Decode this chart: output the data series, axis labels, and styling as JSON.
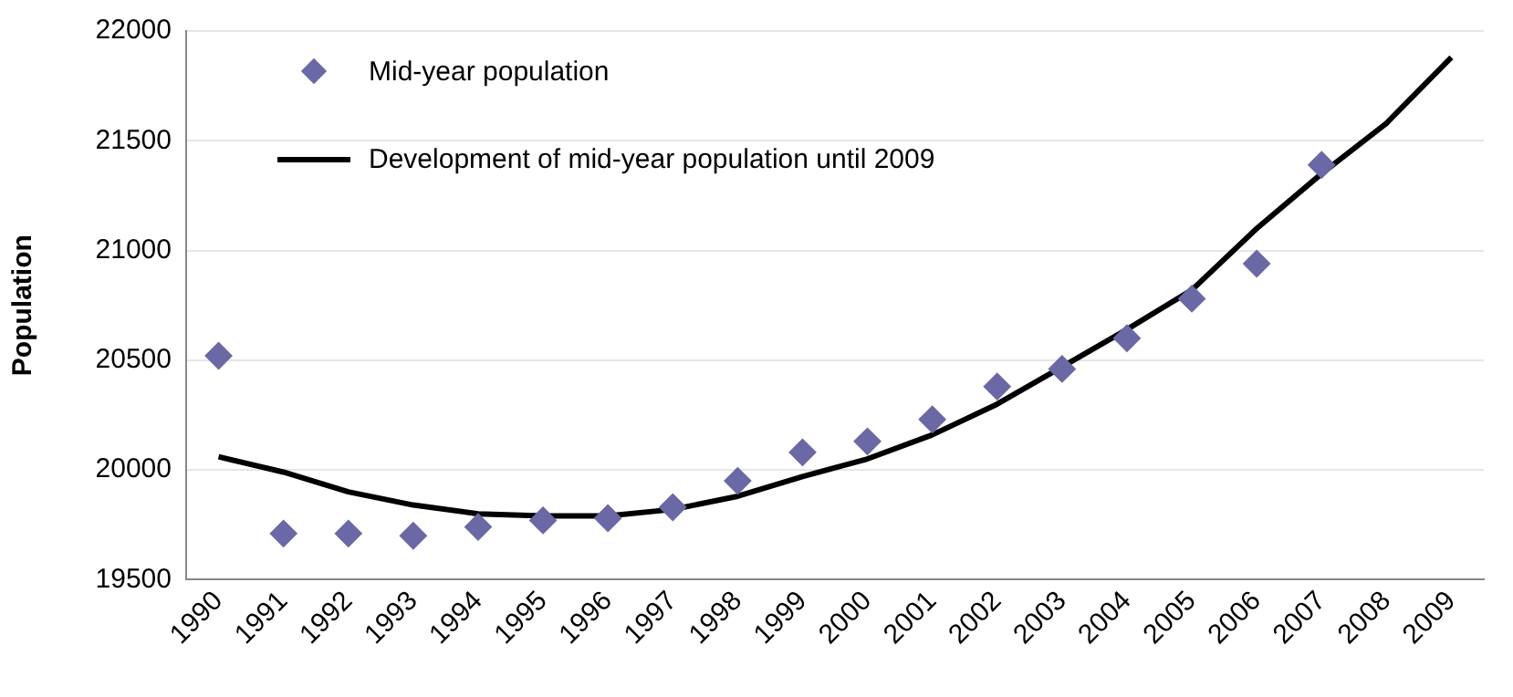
{
  "chart_data": {
    "type": "line",
    "ylabel": "Population",
    "categories": [
      "1990",
      "1991",
      "1992",
      "1993",
      "1994",
      "1995",
      "1996",
      "1997",
      "1998",
      "1999",
      "2000",
      "2001",
      "2002",
      "2003",
      "2004",
      "2005",
      "2006",
      "2007",
      "2008",
      "2009"
    ],
    "series": [
      {
        "name": "Mid-year population",
        "type": "scatter",
        "marker": "diamond",
        "color": "#6b68a6",
        "values": [
          20520,
          19710,
          19710,
          19700,
          19740,
          19770,
          19780,
          19830,
          19950,
          20080,
          20130,
          20230,
          20380,
          20460,
          20600,
          20780,
          20940,
          21390,
          null,
          null
        ]
      },
      {
        "name": "Development of mid-year population until 2009",
        "marker": "none",
        "color": "#000000",
        "values": [
          20060,
          19990,
          19900,
          19840,
          19800,
          19790,
          19790,
          19820,
          19880,
          19970,
          20050,
          20160,
          20300,
          20470,
          20640,
          20820,
          21100,
          21350,
          21580,
          21880
        ]
      }
    ],
    "ylim": [
      19500,
      22000
    ],
    "yticks": [
      19500,
      20000,
      20500,
      21000,
      21500,
      22000
    ],
    "grid": "y",
    "legend": "top left"
  }
}
